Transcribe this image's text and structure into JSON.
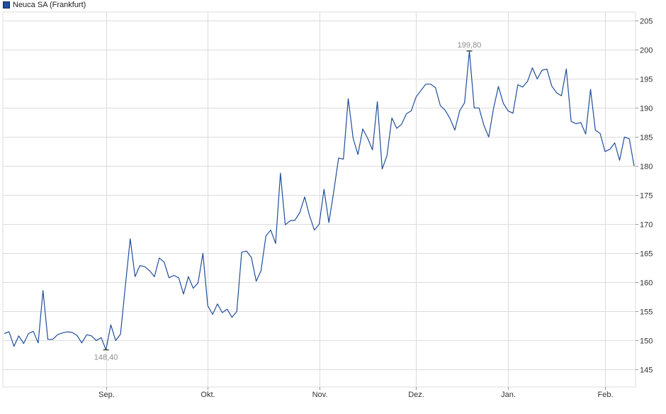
{
  "chart_data": {
    "type": "line",
    "series": [
      {
        "name": "Neuca SA (Frankfurt)",
        "color": "#1f4e9c",
        "values": [
          151.2,
          151.5,
          149.0,
          150.8,
          149.5,
          151.2,
          151.6,
          149.6,
          158.6,
          150.2,
          150.2,
          151.0,
          151.3,
          151.5,
          151.4,
          150.9,
          149.6,
          151.0,
          150.8,
          150.0,
          150.5,
          148.4,
          152.7,
          150.0,
          151.1,
          159.5,
          167.5,
          161.0,
          162.9,
          162.7,
          162.0,
          161.0,
          164.2,
          163.5,
          160.8,
          161.2,
          160.8,
          158.0,
          161.0,
          159.0,
          159.9,
          165.0,
          156.0,
          154.5,
          156.3,
          154.8,
          155.4,
          154.0,
          155.0,
          165.2,
          165.4,
          164.3,
          160.2,
          162.0,
          168.0,
          169.0,
          166.7,
          178.8,
          169.9,
          170.6,
          170.7,
          172.0,
          174.7,
          171.5,
          169.0,
          170.0,
          176.0,
          170.3,
          175.6,
          181.4,
          181.2,
          191.6,
          184.8,
          182.0,
          186.4,
          184.8,
          182.8,
          191.1,
          179.5,
          181.8,
          188.3,
          186.5,
          187.2,
          189.0,
          189.5,
          191.9,
          193.0,
          194.1,
          194.1,
          193.5,
          190.4,
          189.6,
          188.2,
          186.2,
          189.5,
          190.9,
          199.8,
          190.0,
          190.0,
          187.0,
          185.0,
          190.0,
          193.7,
          190.8,
          189.5,
          189.1,
          194.0,
          193.6,
          194.6,
          196.9,
          195.0,
          196.5,
          196.7,
          193.8,
          192.6,
          192.1,
          196.7,
          187.7,
          187.3,
          187.5,
          185.5,
          193.2,
          186.2,
          185.6,
          182.5,
          182.9,
          184.0,
          181.0,
          185.0,
          184.7,
          180.0
        ]
      }
    ],
    "x_tick_labels": [
      {
        "label": "Sep.",
        "index": 21
      },
      {
        "label": "Okt.",
        "index": 42
      },
      {
        "label": "Nov.",
        "index": 65
      },
      {
        "label": "Dez.",
        "index": 85
      },
      {
        "label": "Jan.",
        "index": 104
      },
      {
        "label": "Feb.",
        "index": 124
      }
    ],
    "y_ticks": [
      145,
      150,
      155,
      160,
      165,
      170,
      175,
      180,
      185,
      190,
      195,
      200,
      205
    ],
    "ylim": [
      142,
      206.5
    ],
    "grid": true,
    "legend_placement": "top-left",
    "annotations": [
      {
        "label": "199,80",
        "index": 96,
        "value": 199.8,
        "position": "above"
      },
      {
        "label": "148,40",
        "index": 21,
        "value": 148.4,
        "position": "below"
      }
    ],
    "colors": {
      "line": "#1f4e9c",
      "grid": "#dcdcdc",
      "annotation": "#8c8c8c",
      "axis_text": "#333333"
    }
  }
}
